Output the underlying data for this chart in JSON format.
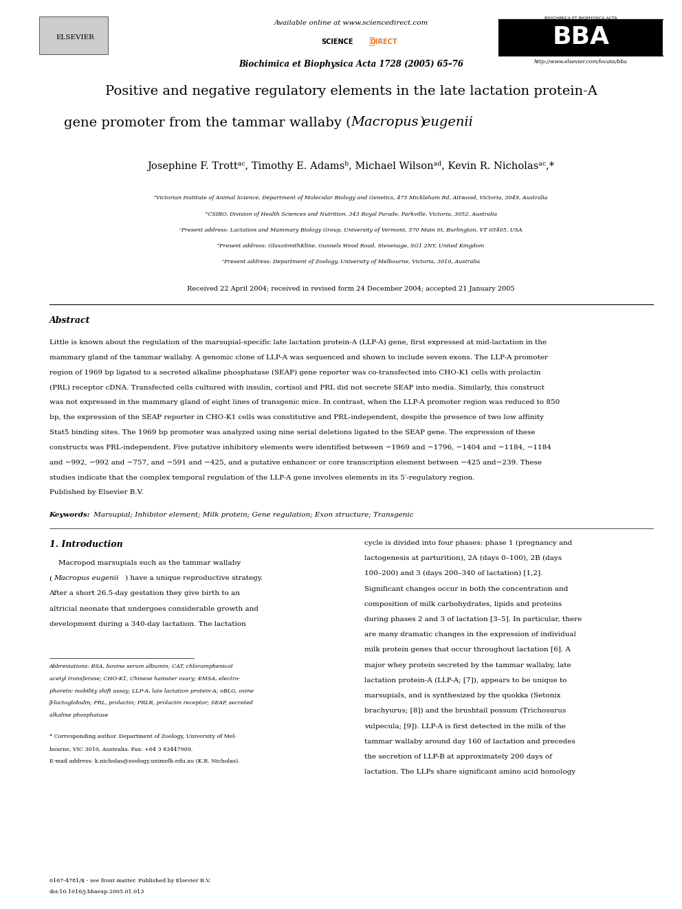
{
  "bg_color": "#ffffff",
  "page_width": 9.92,
  "page_height": 13.23,
  "header_available": "Available online at www.sciencedirect.com",
  "header_journal": "Biochimica et Biophysica Acta 1728 (2005) 65–76",
  "header_elsevier": "ELSEVIER",
  "header_bba_top": "BIOCHIMICA ET BIOPHYSICA ACTA",
  "header_bba_url": "http://www.elsevier.com/locate/bba",
  "title_line1": "Positive and negative regulatory elements in the late lactation protein-A",
  "title_line2_before": "gene promoter from the tammar wallaby (",
  "title_line2_italic": "Macropus eugenii",
  "title_line2_after": ")",
  "authors": "Josephine F. Trottᵃᶜ, Timothy E. Adamsᵇ, Michael Wilsonᵃᵈ, Kevin R. Nicholasᵃᶜ,*",
  "affiliations": [
    "ᵃVictorian Institute of Animal Science, Department of Molecular Biology and Genetics, 475 Mickleham Rd, Attwood, Victoria, 3049, Australia",
    "ᵇCSIRO, Division of Health Sciences and Nutrition, 343 Royal Parade, Parkville, Victoria, 3052, Australia",
    "ᶜPresent address: Lactation and Mammary Biology Group, University of Vermont, 570 Main St, Burlington, VT 05405, USA",
    "ᵈPresent address: GlaxoSmithKline, Gunnels Wood Road, Stevenage, SG1 2NY, United Kingdom",
    "ᵉPresent address: Department of Zoology, University of Melbourne, Victoria, 3010, Australia"
  ],
  "received": "Received 22 April 2004; received in revised form 24 December 2004; accepted 21 January 2005",
  "abstract_title": "Abstract",
  "abstract_lines": [
    "Little is known about the regulation of the marsupial-specific late lactation protein-A (LLP-A) gene, first expressed at mid-lactation in the",
    "mammary gland of the tammar wallaby. A genomic clone of LLP-A was sequenced and shown to include seven exons. The LLP-A promoter",
    "region of 1969 bp ligated to a secreted alkaline phosphatase (SEAP) gene reporter was co-transfected into CHO-K1 cells with prolactin",
    "(PRL) receptor cDNA. Transfected cells cultured with insulin, cortisol and PRL did not secrete SEAP into media. Similarly, this construct",
    "was not expressed in the mammary gland of eight lines of transgenic mice. In contrast, when the LLP-A promoter region was reduced to 850",
    "bp, the expression of the SEAP reporter in CHO-K1 cells was constitutive and PRL-independent, despite the presence of two low affinity",
    "Stat5 binding sites. The 1969 bp promoter was analyzed using nine serial deletions ligated to the SEAP gene. The expression of these",
    "constructs was PRL-independent. Five putative inhibitory elements were identified between −1969 and −1796, −1404 and −1184, −1184",
    "and −992, −992 and −757, and −591 and −425, and a putative enhancer or core transcription element between −425 and−239. These",
    "studies indicate that the complex temporal regulation of the LLP-A gene involves elements in its 5′-regulatory region.",
    "Published by Elsevier B.V."
  ],
  "keywords_bold": "Keywords:",
  "keywords_rest": " Marsupial; Inhibitor element; Milk protein; Gene regulation; Exon structure; Transgenic",
  "sec1_title": "1. Introduction",
  "left_col_lines": [
    "    Macropod marsupials such as the tammar wallaby",
    "(Macropus eugenii) have a unique reproductive strategy.",
    "After a short 26.5-day gestation they give birth to an",
    "altricial neonate that undergoes considerable growth and",
    "development during a 340-day lactation. The lactation"
  ],
  "right_col_lines": [
    "cycle is divided into four phases: phase 1 (pregnancy and",
    "lactogenesis at parturition), 2A (days 0–100), 2B (days",
    "100–200) and 3 (days 200–340 of lactation) [1,2].",
    "Significant changes occur in both the concentration and",
    "composition of milk carbohydrates, lipids and proteins",
    "during phases 2 and 3 of lactation [3–5]. In particular, there",
    "are many dramatic changes in the expression of individual",
    "milk protein genes that occur throughout lactation [6]. A",
    "major whey protein secreted by the tammar wallaby, late",
    "lactation protein-A (LLP-A; [7]), appears to be unique to",
    "marsupials, and is synthesized by the quokka (Setonix",
    "brachyurus; [8]) and the brushtail possum (Trichosurus",
    "vulpecula; [9]). LLP-A is first detected in the milk of the",
    "tammar wallaby around day 160 of lactation and precedes",
    "the secretion of LLP-B at approximately 200 days of",
    "lactation. The LLPs share significant amino acid homology"
  ],
  "fn_abbrev_lines": [
    "Abbreviations: BSA, bovine serum albumin; CAT, chloramphenicol",
    "acetyl transferase; CHO-K1, Chinese hamster ovary; EMSA, electro-",
    "phoretic mobility shift assay; LLP-A, late lactation protein-A; oBLG, ovine",
    "β-lactoglobulin; PRL, prolactin; PRLR, prolactin receptor; SEAP, secreted",
    "alkaline phosphatase"
  ],
  "fn_corr_lines": [
    "* Corresponding author. Department of Zoology, University of Mel-",
    "bourne, VIC 3010, Australia. Fax: +64 3 83447909.",
    "E-mail address: k.nicholas@zoology.unimelb.edu.au (K.R. Nicholas)."
  ],
  "footer_line1": "0167-4781/$ - see front matter. Published by Elsevier B.V.",
  "footer_line2": "doi:10.1016/j.bbaexp.2005.01.013"
}
